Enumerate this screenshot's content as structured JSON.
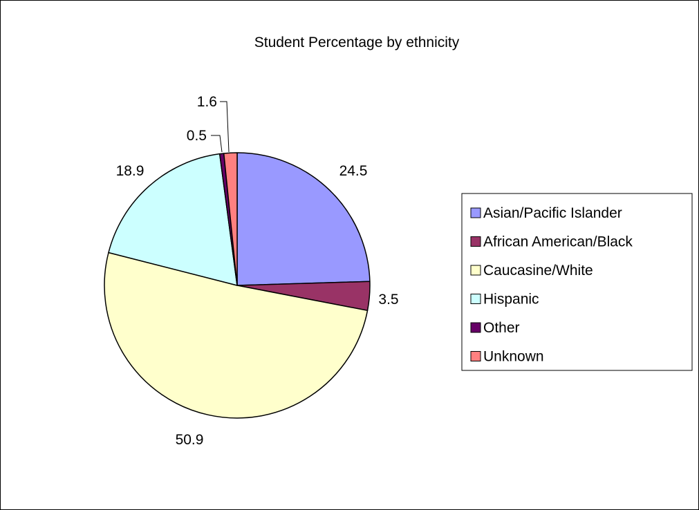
{
  "chart_data": {
    "type": "pie",
    "title": "Student Percentage by ethnicity",
    "categories": [
      "Asian/Pacific Islander",
      "African American/Black",
      "Caucasine/White",
      "Hispanic",
      "Other",
      "Unknown"
    ],
    "values": [
      24.5,
      3.5,
      50.9,
      18.9,
      0.5,
      1.6
    ],
    "data_labels": [
      "24.5",
      "3.5",
      "50.9",
      "18.9",
      "0.5",
      "1.6"
    ],
    "colors": [
      "#9999FF",
      "#993366",
      "#FFFFCC",
      "#CCFFFF",
      "#660066",
      "#FF8080"
    ],
    "start_angle_deg": 0,
    "direction": "clockwise",
    "legend_position": "right"
  }
}
